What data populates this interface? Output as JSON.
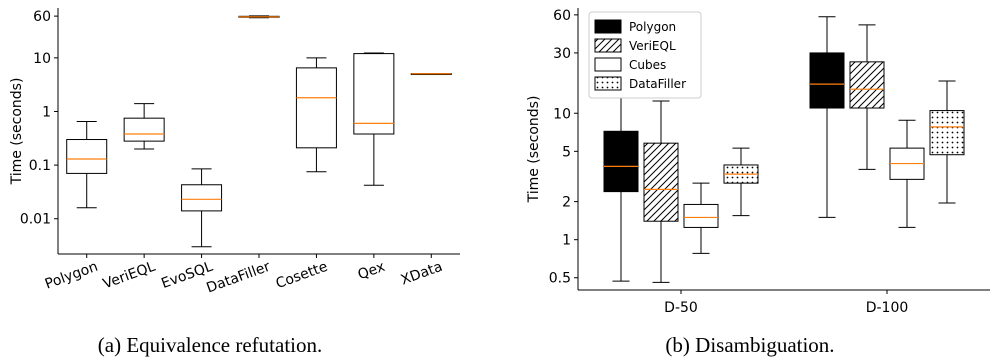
{
  "colors": {
    "median": "#ff7f0e",
    "box_edge": "#000000",
    "axis": "#000000"
  },
  "chart_data": [
    {
      "type": "box",
      "caption": "(a) Equivalence refutation.",
      "ylabel": "Time (seconds)",
      "yscale": "log",
      "ylim": [
        0.0022,
        85
      ],
      "yticks": [
        0.01,
        0.1,
        1,
        10,
        60
      ],
      "ytick_labels": [
        "0.01",
        "0.1",
        "1",
        "10",
        "60"
      ],
      "categories": [
        "Polygon",
        "VeriEQL",
        "EvoSQL",
        "DataFiller",
        "Cosette",
        "Qex",
        "XData"
      ],
      "boxes": [
        {
          "name": "Polygon",
          "whislo": 0.016,
          "q1": 0.07,
          "med": 0.13,
          "q3": 0.3,
          "whishi": 0.65,
          "fill": "none"
        },
        {
          "name": "VeriEQL",
          "whislo": 0.2,
          "q1": 0.28,
          "med": 0.38,
          "q3": 0.75,
          "whishi": 1.4,
          "fill": "none"
        },
        {
          "name": "EvoSQL",
          "whislo": 0.003,
          "q1": 0.014,
          "med": 0.023,
          "q3": 0.043,
          "whishi": 0.085,
          "fill": "none"
        },
        {
          "name": "DataFiller",
          "whislo": 56,
          "q1": 57,
          "med": 58,
          "q3": 59.5,
          "whishi": 60.5,
          "fill": "none"
        },
        {
          "name": "Cosette",
          "whislo": 0.075,
          "q1": 0.21,
          "med": 1.8,
          "q3": 6.5,
          "whishi": 10,
          "fill": "none"
        },
        {
          "name": "Qex",
          "whislo": 0.042,
          "q1": 0.38,
          "med": 0.6,
          "q3": 12,
          "whishi": 12.3,
          "fill": "none"
        },
        {
          "name": "XData",
          "whislo": 5.0,
          "q1": 5.0,
          "med": 5.05,
          "q3": 5.1,
          "whishi": 5.1,
          "fill": "none"
        }
      ]
    },
    {
      "type": "box",
      "caption": "(b) Disambiguation.",
      "ylabel": "Time (seconds)",
      "yscale": "log",
      "ylim": [
        0.4,
        68
      ],
      "yticks": [
        0.5,
        1,
        2,
        5,
        10,
        30,
        60
      ],
      "ytick_labels": [
        "0.5",
        "1",
        "2",
        "5",
        "10",
        "30",
        "60"
      ],
      "categories": [
        "D-50",
        "D-100"
      ],
      "legend": {
        "placement": "top-left",
        "entries": [
          {
            "label": "Polygon",
            "fill": "solid"
          },
          {
            "label": "VeriEQL",
            "fill": "hatch"
          },
          {
            "label": "Cubes",
            "fill": "none"
          },
          {
            "label": "DataFiller",
            "fill": "dots"
          }
        ]
      },
      "groups": [
        {
          "category": "D-50",
          "boxes": [
            {
              "name": "Polygon",
              "whislo": 0.47,
              "q1": 2.4,
              "med": 3.8,
              "q3": 7.2,
              "whishi": 14,
              "fill": "solid"
            },
            {
              "name": "VeriEQL",
              "whislo": 0.46,
              "q1": 1.4,
              "med": 2.5,
              "q3": 5.8,
              "whishi": 12.5,
              "fill": "hatch"
            },
            {
              "name": "Cubes",
              "whislo": 0.78,
              "q1": 1.25,
              "med": 1.5,
              "q3": 1.9,
              "whishi": 2.8,
              "fill": "none"
            },
            {
              "name": "DataFiller",
              "whislo": 1.55,
              "q1": 2.8,
              "med": 3.3,
              "q3": 3.9,
              "whishi": 5.3,
              "fill": "dots"
            }
          ]
        },
        {
          "category": "D-100",
          "boxes": [
            {
              "name": "Polygon",
              "whislo": 1.5,
              "q1": 11,
              "med": 17,
              "q3": 30,
              "whishi": 58,
              "fill": "solid"
            },
            {
              "name": "VeriEQL",
              "whislo": 3.6,
              "q1": 11,
              "med": 15.5,
              "q3": 25.5,
              "whishi": 50,
              "fill": "hatch"
            },
            {
              "name": "Cubes",
              "whislo": 1.25,
              "q1": 3.0,
              "med": 4.0,
              "q3": 5.3,
              "whishi": 8.8,
              "fill": "none"
            },
            {
              "name": "DataFiller",
              "whislo": 1.95,
              "q1": 4.7,
              "med": 7.8,
              "q3": 10.5,
              "whishi": 18,
              "fill": "dots"
            }
          ]
        }
      ]
    }
  ]
}
